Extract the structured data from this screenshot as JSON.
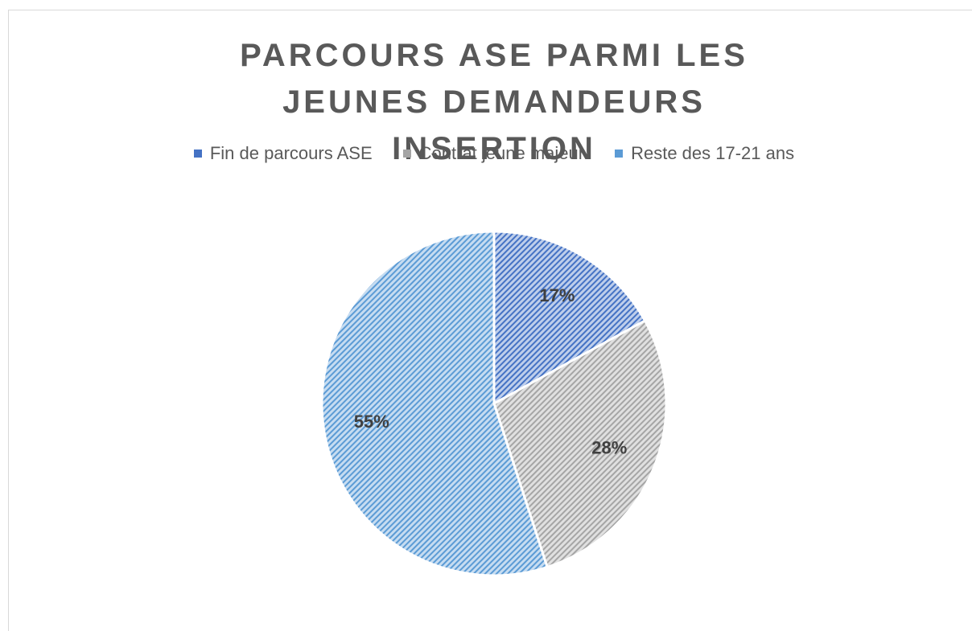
{
  "chart_data": {
    "type": "pie",
    "title": "PARCOURS ASE PARMI LES JEUNES DEMANDEURS INSERTION",
    "categories": [
      "Fin de parcours ASE",
      "Contrat jeune majeur",
      "Reste des 17-21 ans"
    ],
    "values": [
      17,
      28,
      55
    ],
    "value_labels": [
      "17%",
      "28%",
      "55%"
    ],
    "colors": [
      "#4472c4",
      "#a5a5a5",
      "#5b9bd5"
    ],
    "legend": "top"
  }
}
